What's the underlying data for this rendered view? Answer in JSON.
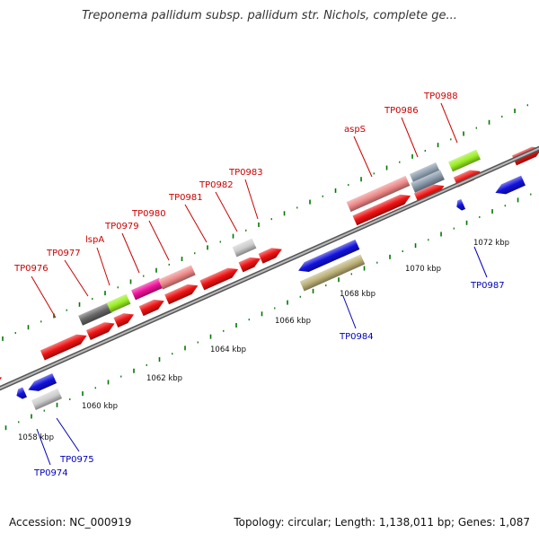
{
  "title": "Treponema pallidum subsp. pallidum str. Nichols, complete ge...",
  "footer": {
    "accession": "Accession: NC_000919",
    "summary": "Topology: circular; Length: 1,138,011 bp; Genes: 1,087"
  },
  "colors": {
    "backbone": "#808080",
    "plus_label": "#cc0000",
    "minus_label": "#0000bb",
    "tick": "#007700",
    "kbp_text": "#111111"
  },
  "kbp_labels": [
    "1058 kbp",
    "1060 kbp",
    "1062 kbp",
    "1064 kbp",
    "1066 kbp",
    "1068 kbp",
    "1070 kbp",
    "1072 kbp"
  ],
  "genes": [
    {
      "label": "TP0976",
      "strand": "plus",
      "color": "#ee1111"
    },
    {
      "label": "TP0977",
      "strand": "plus",
      "color": "#ee1111"
    },
    {
      "label": "lspA",
      "strand": "plus",
      "color": "#666666"
    },
    {
      "label": "TP0979",
      "strand": "plus",
      "color": "#99ee22"
    },
    {
      "label": "TP0980",
      "strand": "plus",
      "color": "#ee1199"
    },
    {
      "label": "TP0981",
      "strand": "plus",
      "color": "#ee1111"
    },
    {
      "label": "TP0982",
      "strand": "plus",
      "color": "#cccccc"
    },
    {
      "label": "TP0983",
      "strand": "plus",
      "color": "#ee1111"
    },
    {
      "label": "aspS",
      "strand": "plus",
      "color": "#ee8888"
    },
    {
      "label": "TP0986",
      "strand": "plus",
      "color": "#8899aa"
    },
    {
      "label": "TP0988",
      "strand": "plus",
      "color": "#99ee22"
    },
    {
      "label": "TP0974",
      "strand": "minus",
      "color": "#1111dd"
    },
    {
      "label": "TP0975",
      "strand": "minus",
      "color": "#1111dd"
    },
    {
      "label": "TP0984",
      "strand": "minus",
      "color": "#bbb077"
    },
    {
      "label": "TP0987",
      "strand": "minus",
      "color": "#1111dd"
    }
  ]
}
